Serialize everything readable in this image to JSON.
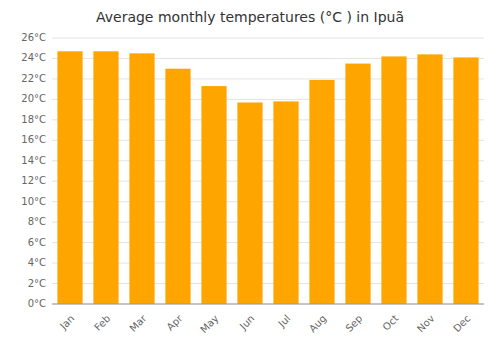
{
  "chart_data": {
    "type": "bar",
    "title": "Average monthly temperatures (°C ) in Ipuã",
    "categories": [
      "Jan",
      "Feb",
      "Mar",
      "Apr",
      "May",
      "Jun",
      "Jul",
      "Aug",
      "Sep",
      "Oct",
      "Nov",
      "Dec"
    ],
    "values": [
      24.7,
      24.7,
      24.5,
      23.0,
      21.3,
      19.7,
      19.8,
      21.9,
      23.5,
      24.2,
      24.4,
      24.1
    ],
    "color": "#FFA500",
    "ylim": [
      0,
      26
    ],
    "yticks": [
      {
        "value": 0,
        "label": "0°C"
      },
      {
        "value": 2,
        "label": "2°C"
      },
      {
        "value": 4,
        "label": "4°C"
      },
      {
        "value": 6,
        "label": "6°C"
      },
      {
        "value": 8,
        "label": "8°C"
      },
      {
        "value": 10,
        "label": "10°C"
      },
      {
        "value": 12,
        "label": "12°C"
      },
      {
        "value": 14,
        "label": "14°C"
      },
      {
        "value": 16,
        "label": "16°C"
      },
      {
        "value": 18,
        "label": "18°C"
      },
      {
        "value": 20,
        "label": "20°C"
      },
      {
        "value": 22,
        "label": "22°C"
      },
      {
        "value": 24,
        "label": "24°C"
      },
      {
        "value": 26,
        "label": "26°C"
      }
    ],
    "grid": true
  }
}
